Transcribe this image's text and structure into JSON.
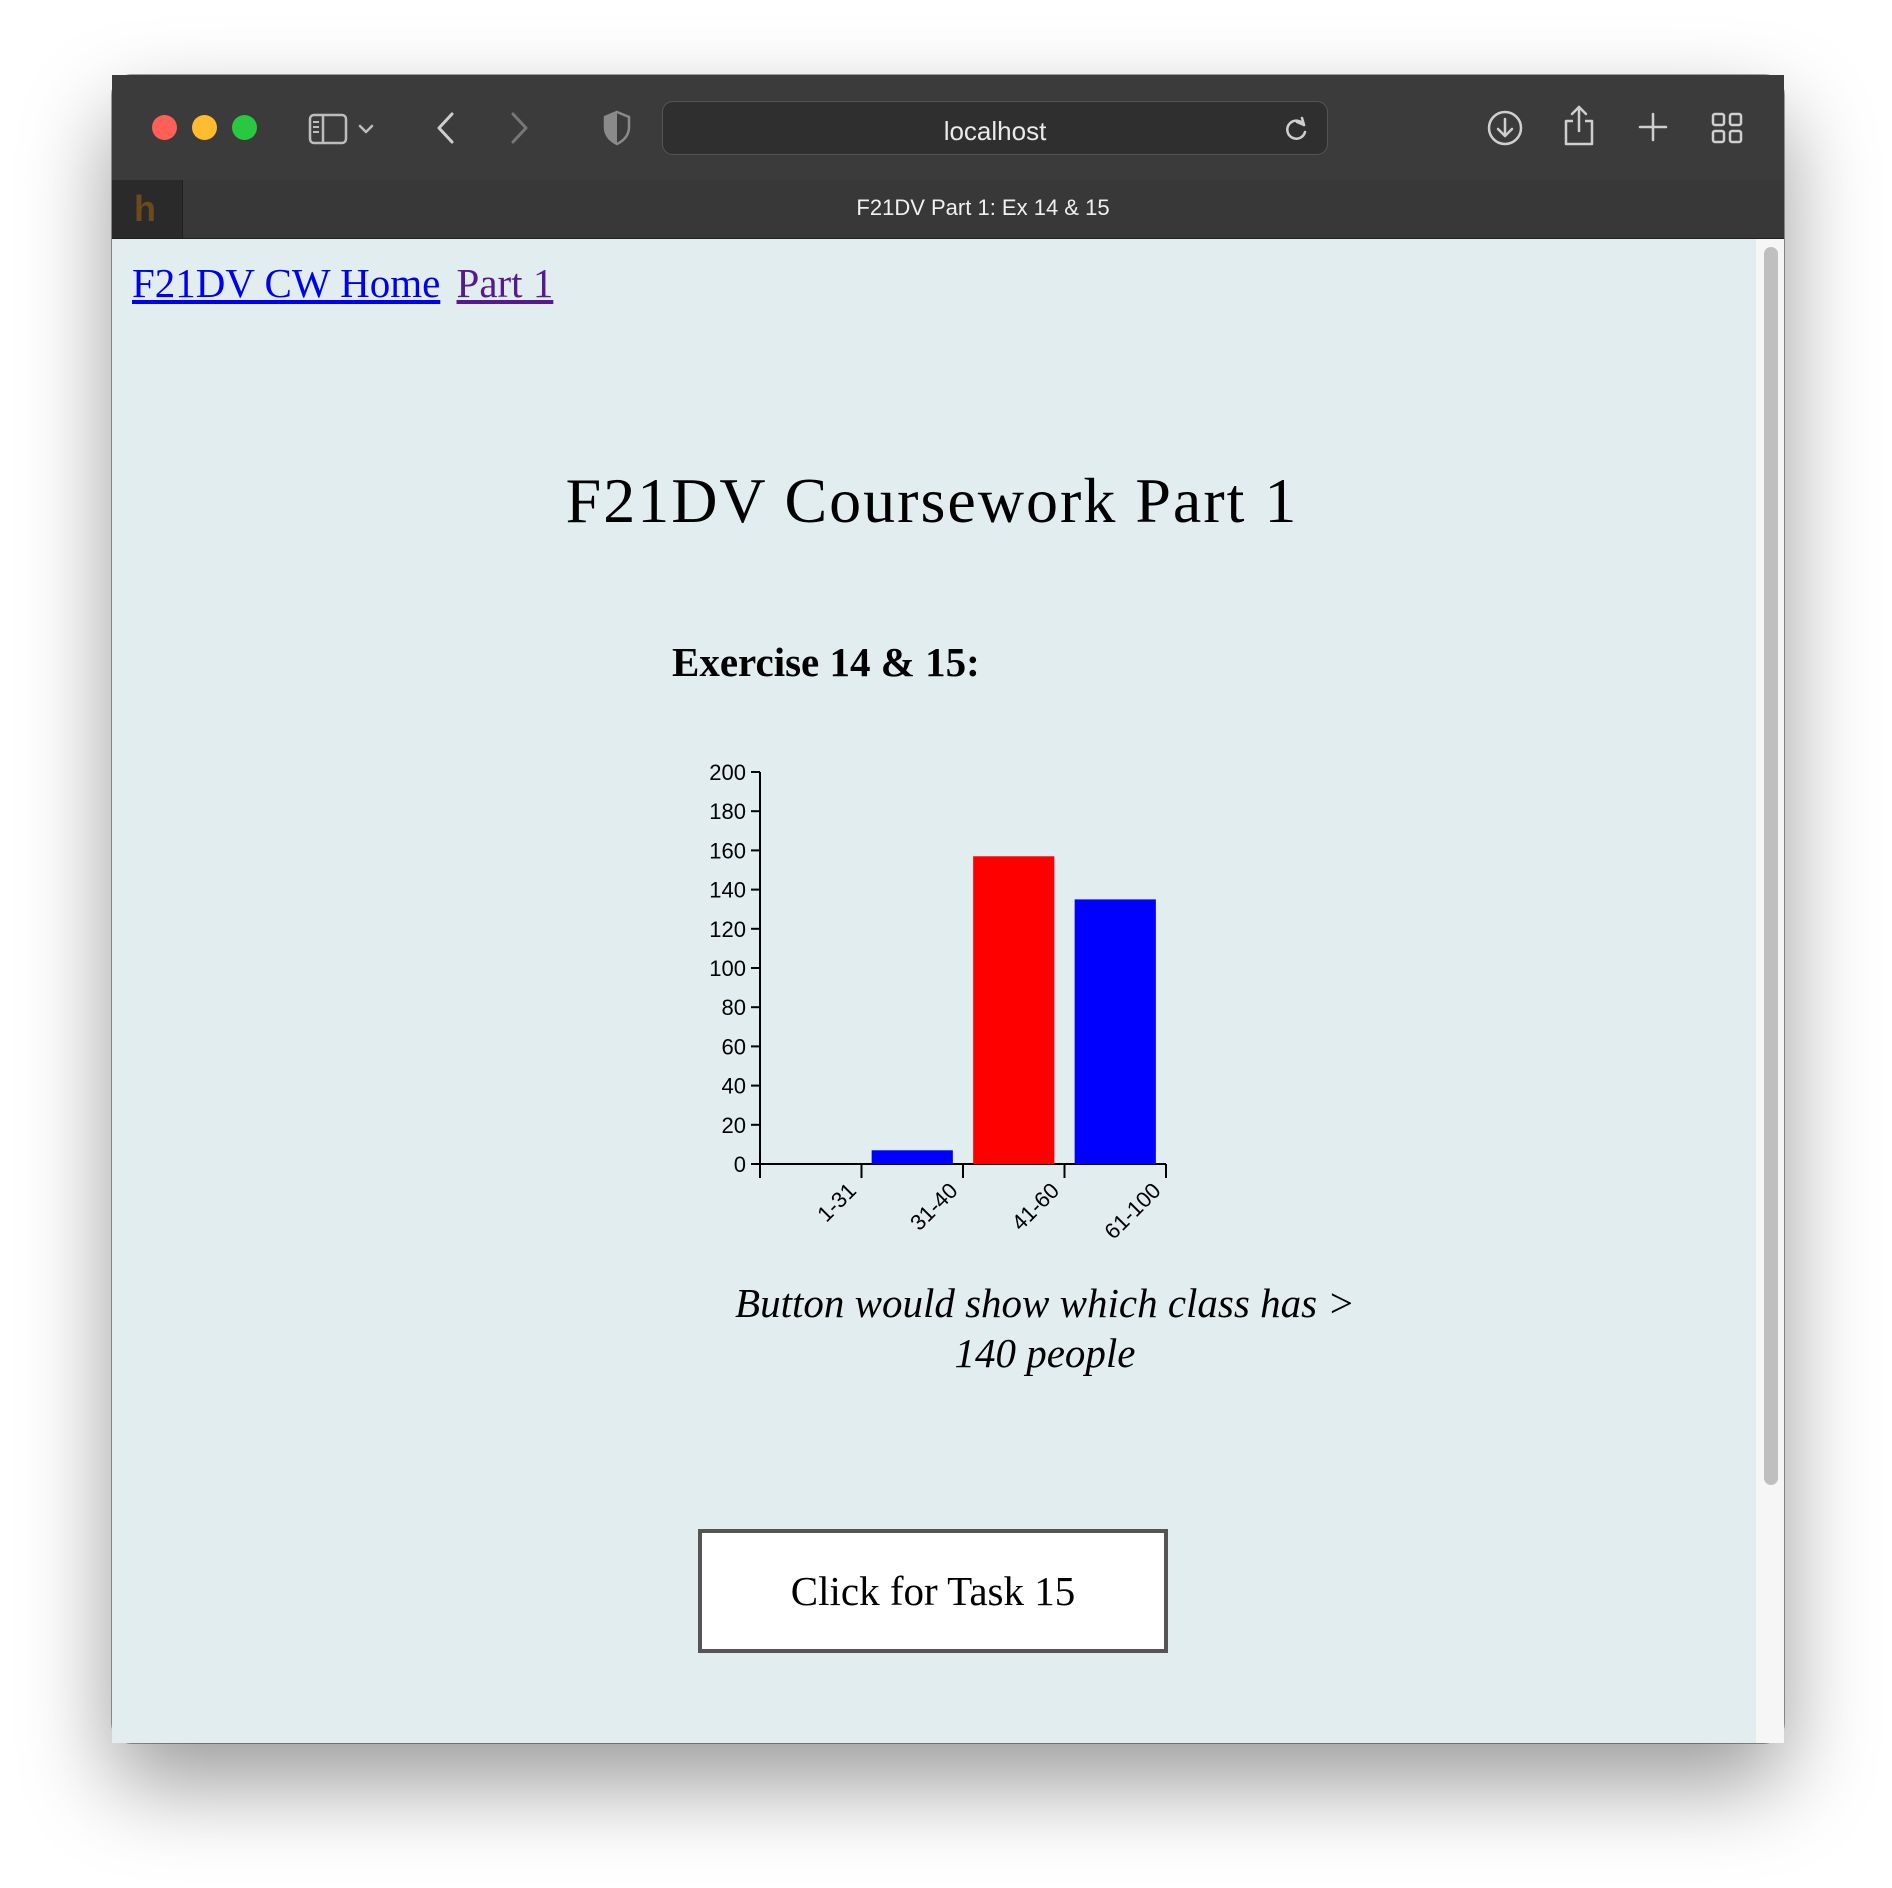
{
  "browser": {
    "address": "localhost",
    "tab_title": "F21DV Part 1: Ex 14 & 15",
    "favicon_letter": "h",
    "icons": [
      "sidebar-icon",
      "chevron-down-icon",
      "back-icon",
      "forward-icon",
      "shield-icon",
      "reload-icon",
      "download-icon",
      "share-icon",
      "new-tab-icon",
      "tab-overview-icon"
    ]
  },
  "nav": {
    "home_label": "F21DV CW Home",
    "part_label": "Part 1"
  },
  "page": {
    "title": "F21DV Coursework Part 1",
    "exercise_title": "Exercise 14 & 15:",
    "caption": "Button would show which class has > 140 people",
    "button_label": "Click for Task 15"
  },
  "chart_data": {
    "type": "bar",
    "categories": [
      "1-31",
      "31-40",
      "41-60",
      "61-100"
    ],
    "values": [
      0,
      7,
      157,
      135
    ],
    "colors": [
      "#0000ff",
      "#0000ff",
      "#ff0000",
      "#0000ff"
    ],
    "yticks": [
      0,
      20,
      40,
      60,
      80,
      100,
      120,
      140,
      160,
      180,
      200
    ],
    "ylim": [
      0,
      200
    ],
    "title": "",
    "xlabel": "",
    "ylabel": "",
    "grid": false,
    "legend": "none"
  }
}
